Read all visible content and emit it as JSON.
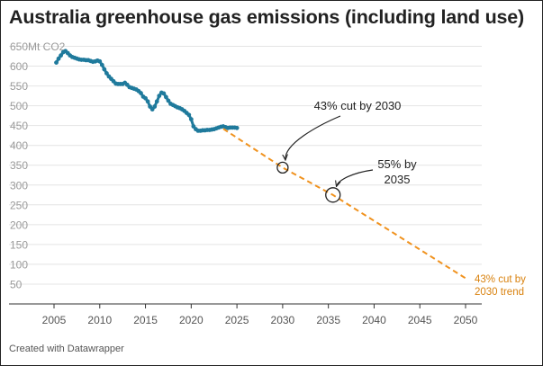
{
  "title": "Australia greenhouse gas emissions (including land use)",
  "footer": "Created with Datawrapper",
  "colors": {
    "emissions_line": "#1f7a9c",
    "trend_line": "#f0921e",
    "trend_label": "#d9820f",
    "grid": "#e4e4e4",
    "axis": "#333333"
  },
  "chart_data": {
    "type": "line",
    "title": "Australia greenhouse gas emissions (including land use)",
    "y_unit_label": "650Mt CO2",
    "xlim": [
      2003,
      2051
    ],
    "ylim": [
      0,
      650
    ],
    "x_ticks": [
      2005,
      2010,
      2015,
      2020,
      2025,
      2030,
      2035,
      2040,
      2045,
      2050
    ],
    "y_ticks": [
      50,
      100,
      150,
      200,
      250,
      300,
      350,
      400,
      450,
      500,
      550,
      600
    ],
    "grid": true,
    "series": [
      {
        "style": "solid-dots",
        "x": [
          2005.25,
          2005.5,
          2005.75,
          2006.0,
          2006.25,
          2006.5,
          2006.75,
          2007.0,
          2007.25,
          2007.5,
          2007.75,
          2008.0,
          2008.25,
          2008.5,
          2008.75,
          2009.0,
          2009.25,
          2009.5,
          2009.75,
          2010.0,
          2010.25,
          2010.5,
          2010.75,
          2011.0,
          2011.25,
          2011.5,
          2011.75,
          2012.0,
          2012.25,
          2012.5,
          2012.75,
          2013.0,
          2013.25,
          2013.5,
          2013.75,
          2014.0,
          2014.25,
          2014.5,
          2014.75,
          2015.0,
          2015.25,
          2015.5,
          2015.75,
          2016.0,
          2016.25,
          2016.5,
          2016.75,
          2017.0,
          2017.25,
          2017.5,
          2017.75,
          2018.0,
          2018.25,
          2018.5,
          2018.75,
          2019.0,
          2019.25,
          2019.5,
          2019.75,
          2020.0,
          2020.25,
          2020.5,
          2020.75,
          2021.0,
          2021.25,
          2021.5,
          2021.75,
          2022.0,
          2022.25,
          2022.5,
          2022.75,
          2023.0,
          2023.25,
          2023.5,
          2023.75,
          2024.0,
          2024.25,
          2024.5,
          2024.75,
          2025.0
        ],
        "y": [
          609,
          619,
          627,
          635,
          638,
          633,
          627,
          623,
          621,
          619,
          617,
          616,
          616,
          615,
          615,
          613,
          611,
          612,
          614,
          612,
          603,
          592,
          582,
          574,
          568,
          562,
          556,
          555,
          555,
          555,
          558,
          553,
          547,
          545,
          543,
          541,
          537,
          532,
          523,
          519,
          511,
          498,
          491,
          498,
          511,
          525,
          533,
          531,
          522,
          513,
          505,
          502,
          499,
          496,
          494,
          491,
          487,
          482,
          477,
          466,
          448,
          441,
          437,
          437,
          438,
          438,
          439,
          439,
          440,
          441,
          443,
          445,
          447,
          448,
          446,
          444,
          445,
          445,
          445,
          444
        ]
      },
      {
        "name": "43% cut by 2030 trend",
        "style": "dashed",
        "x": [
          2023.5,
          2030.0,
          2035.5,
          2050.0
        ],
        "y": [
          442,
          344,
          275,
          65
        ]
      }
    ],
    "annotations": [
      {
        "text": "43% cut by 2030",
        "x": 2030.0,
        "y": 344
      },
      {
        "text_lines": [
          "55% by",
          "2035"
        ],
        "x": 2035.5,
        "y": 275
      },
      {
        "text_lines": [
          "43% cut by",
          "2030 trend"
        ],
        "x": 2050.0,
        "y": 65
      }
    ]
  }
}
